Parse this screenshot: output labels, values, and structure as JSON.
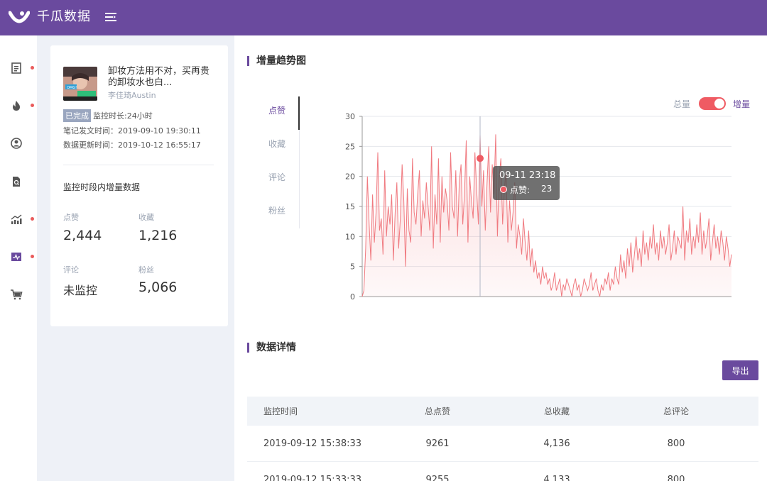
{
  "app": {
    "brand": "千瓜数据"
  },
  "sidebar": {
    "items": [
      {
        "icon": "document-list-icon",
        "dot": true
      },
      {
        "icon": "flame-icon",
        "dot": true
      },
      {
        "icon": "user-circle-icon",
        "dot": false
      },
      {
        "icon": "file-search-icon",
        "dot": false
      },
      {
        "icon": "trend-chart-icon",
        "dot": true
      },
      {
        "icon": "monitor-pulse-icon",
        "dot": true
      },
      {
        "icon": "shopping-cart-icon",
        "dot": false
      }
    ]
  },
  "note": {
    "title": "卸妆方法用不对，买再贵的卸妆水也白...",
    "author": "李佳琦Austin",
    "thumb_text": "OMG!",
    "status_badge": "已完成",
    "monitor_duration": "监控时长:24小时",
    "publish_time": "笔记发文时间：2019-09-10 19:30:11",
    "update_time": "数据更新时间：2019-10-12 16:55:17",
    "section_label": "监控时段内增量数据",
    "stats": {
      "likes_label": "点赞",
      "likes_value": "2,444",
      "collects_label": "收藏",
      "collects_value": "1,216",
      "comments_label": "评论",
      "comments_value": "未监控",
      "fans_label": "粉丝",
      "fans_value": "5,066"
    }
  },
  "trend": {
    "title": "增量趋势图",
    "tabs": [
      "点赞",
      "收藏",
      "评论",
      "粉丝"
    ],
    "active_tab": 0,
    "toggle": {
      "left": "总量",
      "right": "增量",
      "on": true
    },
    "tooltip": {
      "time": "09-11 23:18",
      "label": "点赞:",
      "value": "23"
    }
  },
  "details": {
    "title": "数据详情",
    "export_label": "导出",
    "headers": [
      "监控时间",
      "总点赞",
      "总收藏",
      "总评论"
    ],
    "rows": [
      [
        "2019-09-12 15:38:33",
        "9261",
        "4,136",
        "800"
      ],
      [
        "2019-09-12 15:33:33",
        "9255",
        "4,133",
        "800"
      ]
    ]
  },
  "chart_data": {
    "type": "area",
    "title": "",
    "xlabel": "",
    "ylabel": "",
    "ylim": [
      0,
      30
    ],
    "yticks": [
      "0",
      "5",
      "10",
      "15",
      "20",
      "25",
      "30"
    ],
    "grid": true,
    "legend": "none",
    "color": "#f07a80",
    "series": [
      {
        "values": [
          0,
          1,
          8,
          20,
          12,
          6,
          17,
          9,
          14,
          24,
          11,
          13,
          7,
          21,
          10,
          15,
          12,
          17,
          6,
          14,
          19,
          8,
          13,
          22,
          16,
          5,
          18,
          11,
          9,
          23,
          14,
          12,
          17,
          21,
          10,
          16,
          13,
          19,
          15,
          11,
          25,
          8,
          17,
          12,
          23,
          9,
          20,
          14,
          18,
          16,
          11,
          24,
          15,
          13,
          21,
          10,
          19,
          22,
          12,
          17,
          26,
          9,
          20,
          16,
          13,
          24,
          18,
          12,
          27,
          15,
          21,
          11,
          19,
          25,
          14,
          22,
          17,
          27,
          10,
          20,
          23,
          12,
          18,
          21,
          9,
          16,
          11,
          14,
          19,
          8,
          12,
          10,
          7,
          13,
          9,
          6,
          11,
          5,
          8,
          4,
          6,
          3,
          4,
          2,
          5,
          3,
          4,
          2,
          3,
          1,
          2,
          4,
          1,
          2,
          3,
          0,
          2,
          1,
          3,
          2,
          1,
          0,
          2,
          3,
          1,
          2,
          0,
          1,
          3,
          2,
          1,
          2,
          4,
          1,
          2,
          3,
          1,
          0,
          2,
          1,
          3,
          2,
          4,
          1,
          3,
          2,
          5,
          3,
          2,
          7,
          4,
          6,
          3,
          8,
          5,
          9,
          4,
          7,
          10,
          6,
          8,
          5,
          11,
          7,
          9,
          6,
          10,
          8,
          12,
          7,
          9,
          6,
          11,
          8,
          10,
          7,
          9,
          12,
          6,
          8,
          11,
          7,
          10,
          9,
          8,
          15,
          6,
          11,
          9,
          13,
          7,
          10,
          8,
          12,
          9,
          14,
          7,
          11,
          8,
          10,
          13,
          6,
          9,
          12,
          8,
          10,
          7,
          11,
          9,
          6,
          10,
          8,
          5,
          7
        ]
      }
    ]
  }
}
